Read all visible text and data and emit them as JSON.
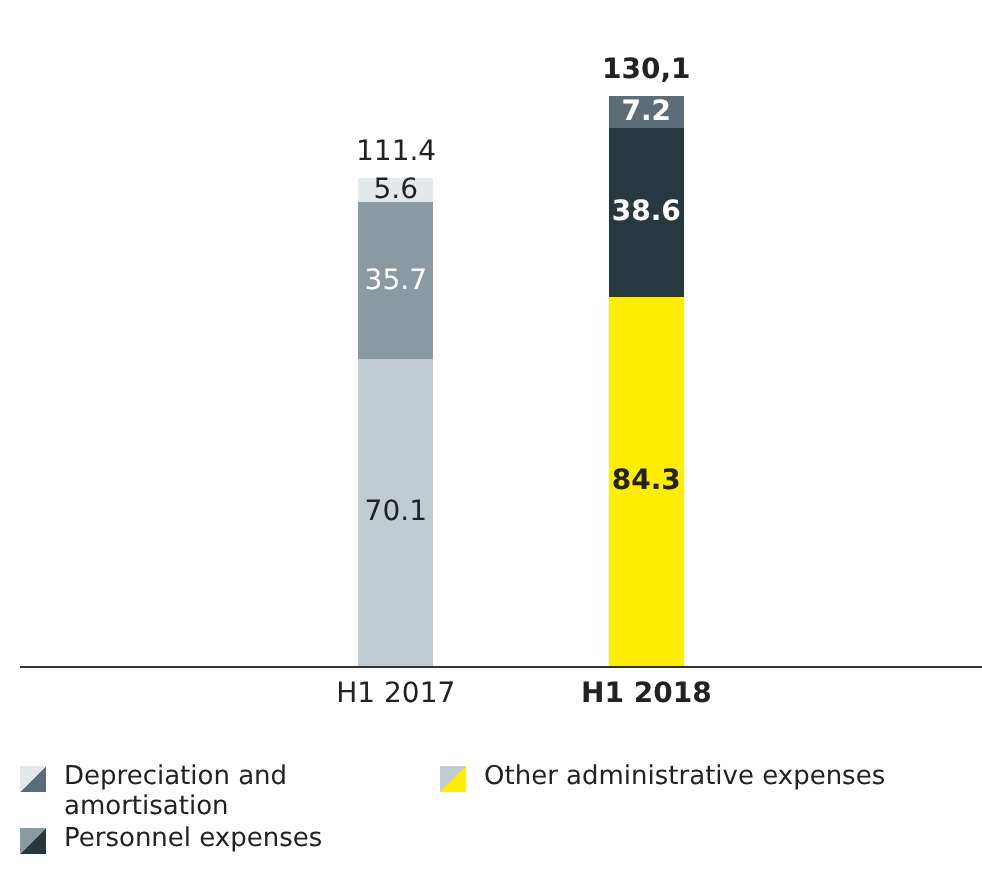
{
  "chart_data": {
    "type": "bar",
    "stacked": true,
    "categories": [
      "H1 2017",
      "H1 2018"
    ],
    "data_labels": true,
    "legend": "bottom",
    "grid": false,
    "totals": [
      "111.4",
      "130,1"
    ],
    "series": [
      {
        "name": "Other administrative expenses",
        "colors": [
          "#c0ccd2",
          "#ffed00"
        ],
        "values": [
          70.1,
          84.3
        ]
      },
      {
        "name": "Personnel expenses",
        "colors": [
          "#8a9aa3",
          "#263840"
        ],
        "values": [
          35.7,
          38.6
        ]
      },
      {
        "name": "Depreciation and amortisation",
        "colors": [
          "#e3e8ea",
          "#5a6d78"
        ],
        "values": [
          5.6,
          7.2
        ]
      }
    ]
  }
}
